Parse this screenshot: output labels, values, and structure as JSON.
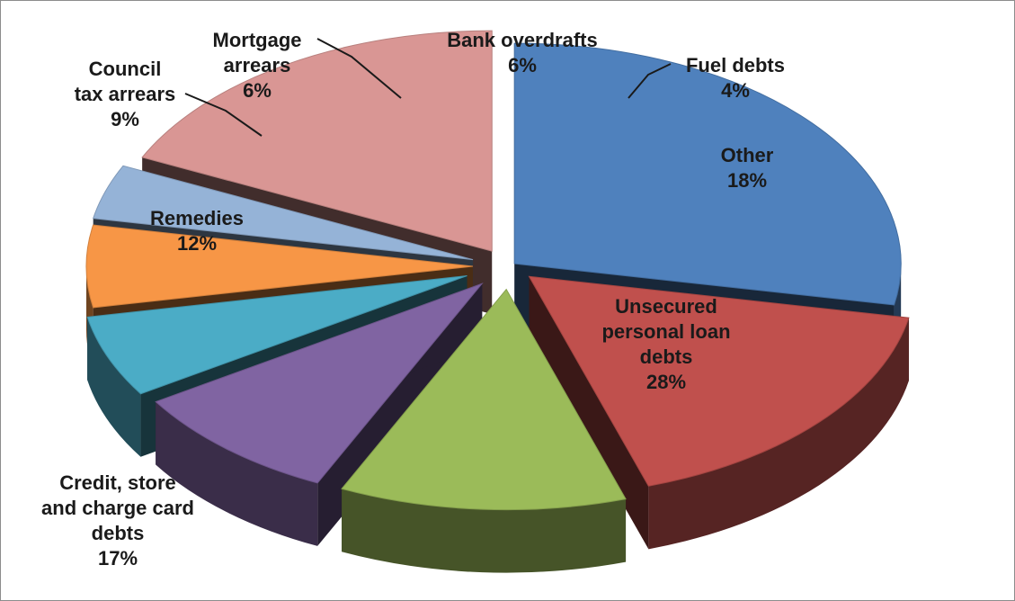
{
  "chart_data": {
    "type": "pie",
    "style": "3d-exploded",
    "slices": [
      {
        "key": "unsecured",
        "label": "Unsecured\npersonal loan\ndebts",
        "value": 28,
        "percent_label": "28%",
        "color": "#4f81bd"
      },
      {
        "key": "credit",
        "label": "Credit, store\nand charge card\ndebts",
        "value": 17,
        "percent_label": "17%",
        "color": "#c0504d"
      },
      {
        "key": "remedies",
        "label": "Remedies",
        "value": 12,
        "percent_label": "12%",
        "color": "#9bbb59"
      },
      {
        "key": "council",
        "label": "Council\ntax arrears",
        "value": 9,
        "percent_label": "9%",
        "color": "#8064a2"
      },
      {
        "key": "mortgage",
        "label": "Mortgage\narrears",
        "value": 6,
        "percent_label": "6%",
        "color": "#4bacc6"
      },
      {
        "key": "bank",
        "label": "Bank overdrafts",
        "value": 6,
        "percent_label": "6%",
        "color": "#f79646"
      },
      {
        "key": "fuel",
        "label": "Fuel debts",
        "value": 4,
        "percent_label": "4%",
        "color": "#95b3d7"
      },
      {
        "key": "other",
        "label": "Other",
        "value": 18,
        "percent_label": "18%",
        "color": "#d99694"
      }
    ],
    "legend": "none"
  }
}
